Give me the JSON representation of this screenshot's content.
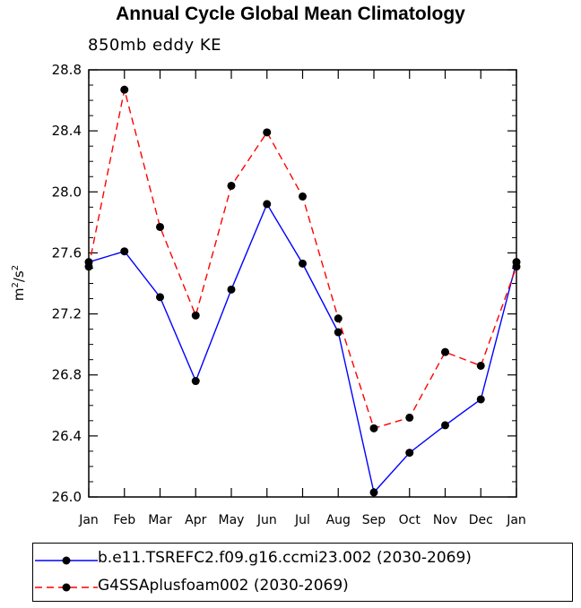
{
  "chart_data": {
    "type": "line",
    "title": "Annual Cycle Global Mean Climatology",
    "subtitle": "850mb eddy KE",
    "xlabel": "",
    "ylabel_base": "m",
    "ylabel_mid": "/s",
    "ylabel_exp": "2",
    "categories": [
      "Jan",
      "Feb",
      "Mar",
      "Apr",
      "May",
      "Jun",
      "Jul",
      "Aug",
      "Sep",
      "Oct",
      "Nov",
      "Dec",
      "Jan"
    ],
    "ylim": [
      26.0,
      28.8
    ],
    "yticks": [
      "26.0",
      "26.4",
      "26.8",
      "27.2",
      "27.6",
      "28.0",
      "28.4",
      "28.8"
    ],
    "grid": false,
    "legend_position": "bottom",
    "series": [
      {
        "name": "b.e11.TSREFC2.f09.g16.ccmi23.002 (2030-2069)",
        "color": "#0000ff",
        "dash": "solid",
        "values": [
          27.54,
          27.61,
          27.31,
          26.76,
          27.36,
          27.92,
          27.53,
          27.08,
          26.03,
          26.29,
          26.47,
          26.64,
          27.54
        ]
      },
      {
        "name": "G4SSAplusfoam002 (2030-2069)",
        "color": "#ff0000",
        "dash": "dashed",
        "values": [
          27.51,
          28.67,
          27.77,
          27.19,
          28.04,
          28.39,
          27.97,
          27.17,
          26.45,
          26.52,
          26.95,
          26.86,
          27.51
        ]
      }
    ]
  }
}
